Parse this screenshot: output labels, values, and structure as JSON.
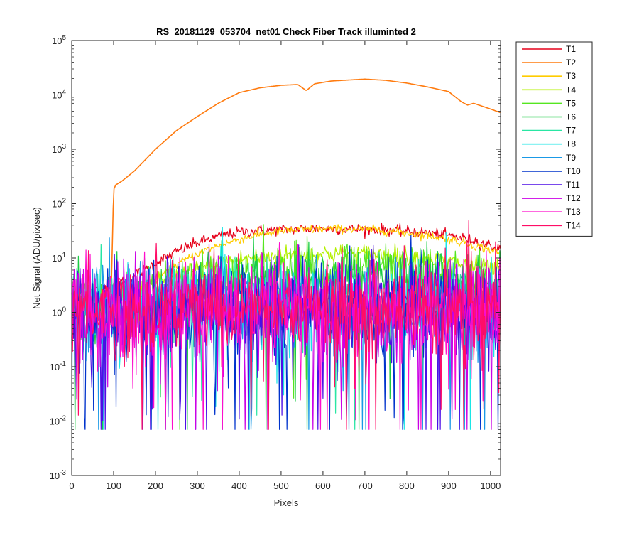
{
  "chart_data": {
    "type": "line",
    "title": "RS_20181129_053704_net01   Check Fiber     Track illuminted 2",
    "xlabel": "Pixels",
    "ylabel": "Net Signal (ADU/pix/sec)",
    "xlim": [
      0,
      1024
    ],
    "ylim": [
      0.001,
      100000
    ],
    "yscale": "log",
    "grid": false,
    "legend_position": "outside-top-right",
    "xticks": [
      0,
      100,
      200,
      300,
      400,
      500,
      600,
      700,
      800,
      900,
      1000
    ],
    "xtick_labels": [
      "0",
      "100",
      "200",
      "300",
      "400",
      "500",
      "600",
      "700",
      "800",
      "900",
      "1000"
    ],
    "yticks": [
      0.001,
      0.01,
      0.1,
      1,
      10,
      100,
      1000,
      10000,
      100000
    ],
    "ytick_labels": [
      {
        "base": "10",
        "exp": "-3"
      },
      {
        "base": "10",
        "exp": "-2"
      },
      {
        "base": "10",
        "exp": "-1"
      },
      {
        "base": "10",
        "exp": "0"
      },
      {
        "base": "10",
        "exp": "1"
      },
      {
        "base": "10",
        "exp": "2"
      },
      {
        "base": "10",
        "exp": "3"
      },
      {
        "base": "10",
        "exp": "4"
      },
      {
        "base": "10",
        "exp": "5"
      }
    ],
    "series": [
      {
        "name": "T1",
        "color": "#e6001a",
        "style": "smooth",
        "x": [
          0,
          50,
          100,
          150,
          200,
          250,
          300,
          350,
          400,
          450,
          500,
          550,
          600,
          650,
          700,
          750,
          800,
          850,
          900,
          950,
          1000,
          1024
        ],
        "y": [
          2.2,
          2.4,
          3.0,
          4.8,
          8.0,
          13,
          19,
          25,
          30,
          32,
          33,
          34,
          35,
          34,
          34,
          33,
          31,
          29,
          26,
          22,
          17,
          14
        ],
        "noise": 0.1
      },
      {
        "name": "T2",
        "color": "#ff7b0f",
        "style": "smooth",
        "x": [
          95,
          100,
          105,
          120,
          150,
          200,
          250,
          300,
          350,
          400,
          450,
          500,
          540,
          560,
          580,
          620,
          700,
          750,
          800,
          850,
          900,
          930,
          945,
          960,
          1000,
          1024
        ],
        "y": [
          3.5,
          180,
          220,
          260,
          400,
          1000,
          2200,
          4000,
          7000,
          11000,
          13500,
          15000,
          15500,
          12000,
          16000,
          18000,
          19500,
          18500,
          16500,
          14000,
          11500,
          7500,
          6500,
          7000,
          5500,
          4700
        ],
        "noise": 0.0
      },
      {
        "name": "T3",
        "color": "#ffcc00",
        "style": "smooth",
        "x": [
          0,
          50,
          100,
          150,
          200,
          250,
          300,
          350,
          400,
          450,
          500,
          550,
          600,
          650,
          700,
          750,
          800,
          850,
          900,
          950,
          1000,
          1024
        ],
        "y": [
          1.8,
          2.0,
          2.2,
          2.5,
          4.0,
          7.5,
          12,
          17,
          22,
          27,
          31,
          33,
          34,
          34,
          34,
          32,
          29,
          26,
          22,
          18,
          14,
          12
        ],
        "noise": 0.08
      },
      {
        "name": "T4",
        "color": "#b3f000",
        "style": "smooth",
        "x": [
          0,
          100,
          200,
          300,
          400,
          500,
          600,
          700,
          800,
          900,
          1000,
          1024
        ],
        "y": [
          1.6,
          1.8,
          3.2,
          6.5,
          9.5,
          11,
          12,
          12,
          11,
          8.5,
          6.2,
          5.5
        ],
        "noise": 0.18
      },
      {
        "name": "T5",
        "color": "#55e620",
        "style": "noisy",
        "x": [
          0,
          100,
          200,
          300,
          400,
          500,
          600,
          700,
          800,
          900,
          1000,
          1024
        ],
        "y": [
          1.4,
          1.6,
          2.3,
          3.8,
          5.0,
          5.8,
          6.2,
          6.1,
          5.6,
          4.7,
          3.6,
          3.2
        ],
        "noise": 0.25,
        "dips": 6
      },
      {
        "name": "T6",
        "color": "#1acc45",
        "style": "noisy",
        "x": [
          0,
          100,
          200,
          300,
          400,
          500,
          600,
          700,
          800,
          900,
          1000,
          1024
        ],
        "y": [
          1.3,
          1.5,
          2.0,
          2.8,
          3.5,
          3.9,
          4.0,
          4.0,
          3.7,
          3.3,
          2.7,
          2.5
        ],
        "noise": 0.28,
        "dips": 8
      },
      {
        "name": "T7",
        "color": "#29e6a3",
        "style": "noisy",
        "x": [
          0,
          1024
        ],
        "y": [
          1.4,
          1.4
        ],
        "noise": 0.35,
        "dips": 12
      },
      {
        "name": "T8",
        "color": "#1ae6e6",
        "style": "noisy",
        "x": [
          0,
          1024
        ],
        "y": [
          1.3,
          1.3
        ],
        "noise": 0.38,
        "dips": 16
      },
      {
        "name": "T9",
        "color": "#1a99e6",
        "style": "noisy",
        "x": [
          0,
          1024
        ],
        "y": [
          1.3,
          1.3
        ],
        "noise": 0.38,
        "dips": 16
      },
      {
        "name": "T10",
        "color": "#0033cc",
        "style": "noisy",
        "x": [
          0,
          1024
        ],
        "y": [
          1.2,
          1.2
        ],
        "noise": 0.42,
        "dips": 28
      },
      {
        "name": "T11",
        "color": "#4d0de6",
        "style": "noisy",
        "x": [
          0,
          1024
        ],
        "y": [
          1.2,
          1.2
        ],
        "noise": 0.42,
        "dips": 26
      },
      {
        "name": "T12",
        "color": "#cc00e6",
        "style": "noisy",
        "x": [
          0,
          1024
        ],
        "y": [
          1.2,
          1.2
        ],
        "noise": 0.42,
        "dips": 26
      },
      {
        "name": "T13",
        "color": "#ff0dcc",
        "style": "noisy",
        "x": [
          0,
          1024
        ],
        "y": [
          1.2,
          1.2
        ],
        "noise": 0.42,
        "dips": 24
      },
      {
        "name": "T14",
        "color": "#ff0d66",
        "style": "noisy",
        "x": [
          0,
          1024
        ],
        "y": [
          1.2,
          1.2
        ],
        "noise": 0.42,
        "dips": 26
      }
    ]
  }
}
